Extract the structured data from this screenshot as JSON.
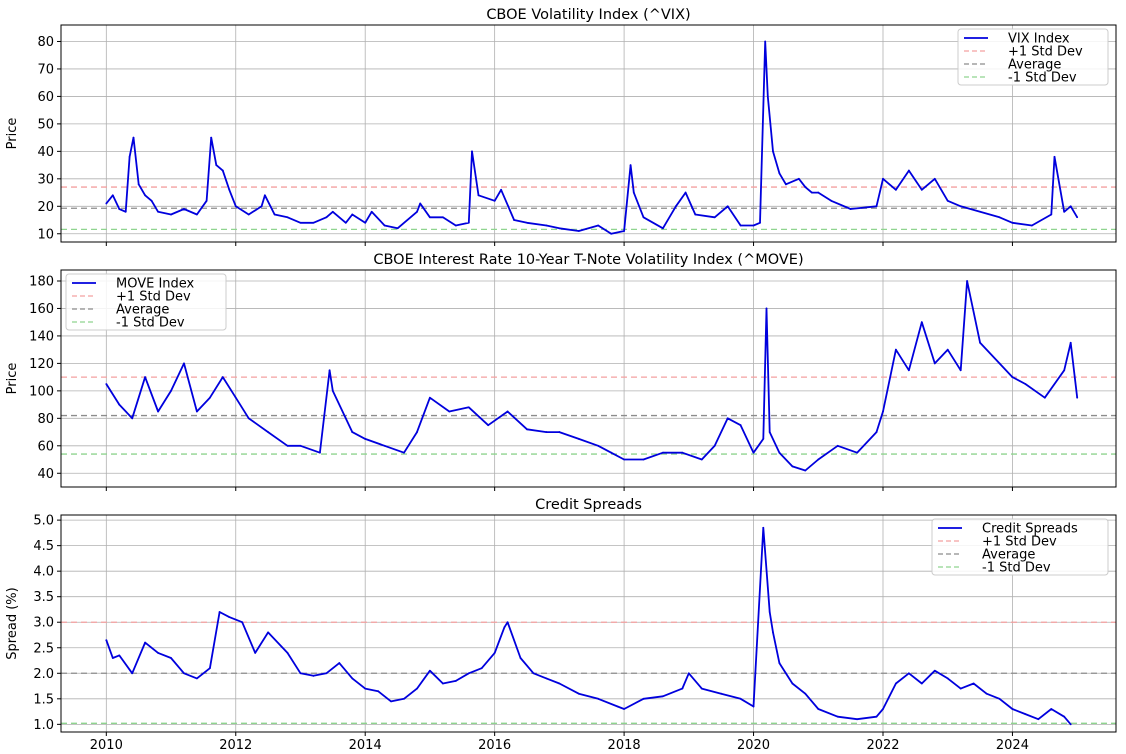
{
  "colors": {
    "series": "#0000dd",
    "plus_std": "#f4a0a0",
    "average": "#8c8c8c",
    "minus_std": "#8fd48f",
    "grid": "#b0b0b0"
  },
  "chart_data": [
    {
      "type": "line",
      "title": "CBOE Volatility Index (^VIX)",
      "xlabel": "",
      "ylabel": "Price",
      "xlim": [
        2009.3,
        2025.6
      ],
      "ylim": [
        7,
        86
      ],
      "yticks": [
        10,
        20,
        30,
        40,
        50,
        60,
        70,
        80
      ],
      "yticklabels": [
        "10",
        "20",
        "30",
        "40",
        "50",
        "60",
        "70",
        "80"
      ],
      "xticks": [
        2010,
        2012,
        2014,
        2016,
        2018,
        2020,
        2022,
        2024
      ],
      "xticklabels": [
        "",
        "",
        "",
        "",
        "",
        "",
        "",
        ""
      ],
      "grid": true,
      "legend_position": "top-right",
      "series": [
        {
          "name": "VIX Index",
          "x": [
            2010.0,
            2010.1,
            2010.2,
            2010.3,
            2010.36,
            2010.42,
            2010.5,
            2010.6,
            2010.7,
            2010.8,
            2011.0,
            2011.2,
            2011.4,
            2011.55,
            2011.62,
            2011.7,
            2011.8,
            2011.9,
            2012.0,
            2012.2,
            2012.4,
            2012.45,
            2012.6,
            2012.8,
            2013.0,
            2013.2,
            2013.4,
            2013.5,
            2013.7,
            2013.8,
            2014.0,
            2014.1,
            2014.3,
            2014.5,
            2014.8,
            2014.85,
            2015.0,
            2015.2,
            2015.4,
            2015.6,
            2015.65,
            2015.75,
            2016.0,
            2016.1,
            2016.3,
            2016.5,
            2016.8,
            2017.0,
            2017.3,
            2017.6,
            2017.8,
            2018.0,
            2018.1,
            2018.15,
            2018.3,
            2018.6,
            2018.8,
            2018.95,
            2019.1,
            2019.4,
            2019.6,
            2019.8,
            2020.0,
            2020.1,
            2020.18,
            2020.22,
            2020.3,
            2020.4,
            2020.5,
            2020.7,
            2020.8,
            2020.9,
            2021.0,
            2021.2,
            2021.5,
            2021.9,
            2022.0,
            2022.2,
            2022.4,
            2022.6,
            2022.8,
            2023.0,
            2023.2,
            2023.5,
            2023.8,
            2024.0,
            2024.3,
            2024.6,
            2024.65,
            2024.8,
            2024.9,
            2025.0
          ],
          "values": [
            21,
            24,
            19,
            18,
            38,
            45,
            28,
            24,
            22,
            18,
            17,
            19,
            17,
            22,
            45,
            35,
            33,
            26,
            20,
            17,
            20,
            24,
            17,
            16,
            14,
            14,
            16,
            18,
            14,
            17,
            14,
            18,
            13,
            12,
            18,
            21,
            16,
            16,
            13,
            14,
            40,
            24,
            22,
            26,
            15,
            14,
            13,
            12,
            11,
            13,
            10,
            11,
            35,
            25,
            16,
            12,
            20,
            25,
            17,
            16,
            20,
            13,
            13,
            14,
            80,
            60,
            40,
            32,
            28,
            30,
            27,
            25,
            25,
            22,
            19,
            20,
            30,
            26,
            33,
            26,
            30,
            22,
            20,
            18,
            16,
            14,
            13,
            17,
            38,
            18,
            20,
            16
          ]
        }
      ],
      "hlines": [
        {
          "name": "+1 Std Dev",
          "value": 27,
          "color_key": "plus_std"
        },
        {
          "name": "Average",
          "value": 19.3,
          "color_key": "average"
        },
        {
          "name": "-1 Std Dev",
          "value": 11.6,
          "color_key": "minus_std"
        }
      ]
    },
    {
      "type": "line",
      "title": "CBOE Interest Rate 10-Year T-Note Volatility Index (^MOVE)",
      "xlabel": "",
      "ylabel": "Price",
      "xlim": [
        2009.3,
        2025.6
      ],
      "ylim": [
        30,
        188
      ],
      "yticks": [
        40,
        60,
        80,
        100,
        120,
        140,
        160,
        180
      ],
      "yticklabels": [
        "40",
        "60",
        "80",
        "100",
        "120",
        "140",
        "160",
        "180"
      ],
      "xticks": [
        2010,
        2012,
        2014,
        2016,
        2018,
        2020,
        2022,
        2024
      ],
      "xticklabels": [
        "",
        "",
        "",
        "",
        "",
        "",
        "",
        ""
      ],
      "grid": true,
      "legend_position": "top-left",
      "series": [
        {
          "name": "MOVE Index",
          "x": [
            2010.0,
            2010.2,
            2010.4,
            2010.6,
            2010.8,
            2011.0,
            2011.2,
            2011.4,
            2011.6,
            2011.8,
            2012.0,
            2012.2,
            2012.5,
            2012.8,
            2013.0,
            2013.3,
            2013.45,
            2013.5,
            2013.8,
            2014.0,
            2014.3,
            2014.6,
            2014.8,
            2015.0,
            2015.3,
            2015.6,
            2015.9,
            2016.2,
            2016.5,
            2016.8,
            2017.0,
            2017.3,
            2017.6,
            2017.8,
            2018.0,
            2018.3,
            2018.6,
            2018.9,
            2019.2,
            2019.4,
            2019.6,
            2019.8,
            2020.0,
            2020.15,
            2020.2,
            2020.25,
            2020.4,
            2020.6,
            2020.8,
            2021.0,
            2021.3,
            2021.6,
            2021.9,
            2022.0,
            2022.2,
            2022.4,
            2022.6,
            2022.8,
            2023.0,
            2023.2,
            2023.3,
            2023.5,
            2023.8,
            2024.0,
            2024.2,
            2024.5,
            2024.8,
            2024.9,
            2025.0
          ],
          "values": [
            105,
            90,
            80,
            110,
            85,
            100,
            120,
            85,
            95,
            110,
            95,
            80,
            70,
            60,
            60,
            55,
            115,
            100,
            70,
            65,
            60,
            55,
            70,
            95,
            85,
            88,
            75,
            85,
            72,
            70,
            70,
            65,
            60,
            55,
            50,
            50,
            55,
            55,
            50,
            60,
            80,
            75,
            55,
            65,
            160,
            70,
            55,
            45,
            42,
            50,
            60,
            55,
            70,
            85,
            130,
            115,
            150,
            120,
            130,
            115,
            180,
            135,
            120,
            110,
            105,
            95,
            115,
            135,
            95
          ]
        }
      ],
      "hlines": [
        {
          "name": "+1 Std Dev",
          "value": 110,
          "color_key": "plus_std"
        },
        {
          "name": "Average",
          "value": 82,
          "color_key": "average"
        },
        {
          "name": "-1 Std Dev",
          "value": 54,
          "color_key": "minus_std"
        }
      ]
    },
    {
      "type": "line",
      "title": "Credit Spreads",
      "xlabel": "",
      "ylabel": "Spread (%)",
      "xlim": [
        2009.3,
        2025.6
      ],
      "ylim": [
        0.85,
        5.1
      ],
      "yticks": [
        1.0,
        1.5,
        2.0,
        2.5,
        3.0,
        3.5,
        4.0,
        4.5,
        5.0
      ],
      "yticklabels": [
        "1.0",
        "1.5",
        "2.0",
        "2.5",
        "3.0",
        "3.5",
        "4.0",
        "4.5",
        "5.0"
      ],
      "xticks": [
        2010,
        2012,
        2014,
        2016,
        2018,
        2020,
        2022,
        2024
      ],
      "xticklabels": [
        "2010",
        "2012",
        "2014",
        "2016",
        "2018",
        "2020",
        "2022",
        "2024"
      ],
      "grid": true,
      "legend_position": "top-right",
      "series": [
        {
          "name": "Credit Spreads",
          "x": [
            2010.0,
            2010.1,
            2010.2,
            2010.4,
            2010.6,
            2010.8,
            2011.0,
            2011.2,
            2011.4,
            2011.6,
            2011.75,
            2011.9,
            2012.1,
            2012.3,
            2012.5,
            2012.8,
            2013.0,
            2013.2,
            2013.4,
            2013.6,
            2013.8,
            2014.0,
            2014.2,
            2014.4,
            2014.6,
            2014.8,
            2015.0,
            2015.2,
            2015.4,
            2015.6,
            2015.8,
            2016.0,
            2016.15,
            2016.2,
            2016.4,
            2016.6,
            2016.8,
            2017.0,
            2017.3,
            2017.6,
            2017.9,
            2018.0,
            2018.3,
            2018.6,
            2018.9,
            2019.0,
            2019.2,
            2019.5,
            2019.8,
            2020.0,
            2020.15,
            2020.25,
            2020.3,
            2020.4,
            2020.6,
            2020.8,
            2021.0,
            2021.3,
            2021.6,
            2021.9,
            2022.0,
            2022.2,
            2022.4,
            2022.6,
            2022.8,
            2023.0,
            2023.2,
            2023.4,
            2023.6,
            2023.8,
            2024.0,
            2024.2,
            2024.4,
            2024.6,
            2024.8,
            2024.9
          ],
          "values": [
            2.65,
            2.3,
            2.35,
            2.0,
            2.6,
            2.4,
            2.3,
            2.0,
            1.9,
            2.1,
            3.2,
            3.1,
            3.0,
            2.4,
            2.8,
            2.4,
            2.0,
            1.95,
            2.0,
            2.2,
            1.9,
            1.7,
            1.65,
            1.45,
            1.5,
            1.7,
            2.05,
            1.8,
            1.85,
            2.0,
            2.1,
            2.4,
            2.9,
            3.0,
            2.3,
            2.0,
            1.9,
            1.8,
            1.6,
            1.5,
            1.35,
            1.3,
            1.5,
            1.55,
            1.7,
            2.0,
            1.7,
            1.6,
            1.5,
            1.35,
            4.85,
            3.2,
            2.8,
            2.2,
            1.8,
            1.6,
            1.3,
            1.15,
            1.1,
            1.15,
            1.3,
            1.8,
            2.0,
            1.8,
            2.05,
            1.9,
            1.7,
            1.8,
            1.6,
            1.5,
            1.3,
            1.2,
            1.1,
            1.3,
            1.15,
            1.0
          ]
        }
      ],
      "hlines": [
        {
          "name": "+1 Std Dev",
          "value": 3.0,
          "color_key": "plus_std"
        },
        {
          "name": "Average",
          "value": 2.0,
          "color_key": "average"
        },
        {
          "name": "-1 Std Dev",
          "value": 1.02,
          "color_key": "minus_std"
        }
      ]
    }
  ]
}
